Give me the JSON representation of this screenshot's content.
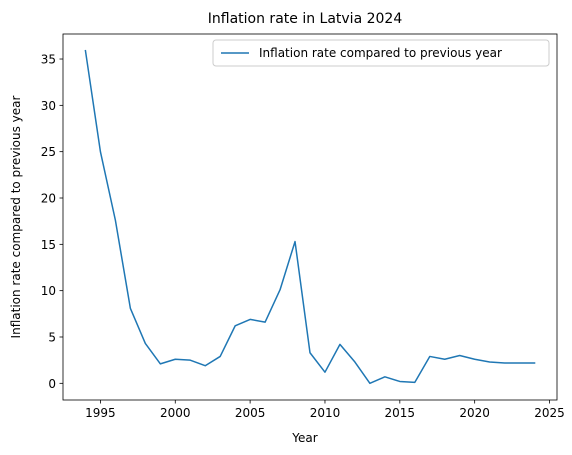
{
  "chart_data": {
    "type": "line",
    "title": "Inflation rate in Latvia 2024",
    "xlabel": "Year",
    "ylabel": "Inflation rate compared to previous year",
    "xlim": [
      1992.5,
      2025.5
    ],
    "ylim": [
      -1.8,
      37.7
    ],
    "xticks": [
      1995,
      2000,
      2005,
      2010,
      2015,
      2020,
      2025
    ],
    "yticks": [
      0,
      5,
      10,
      15,
      20,
      25,
      30,
      35
    ],
    "grid": false,
    "legend_position": "top-right",
    "series": [
      {
        "name": "Inflation rate compared to previous year",
        "color": "#1f77b4",
        "x": [
          1994,
          1995,
          1996,
          1997,
          1998,
          1999,
          2000,
          2001,
          2002,
          2003,
          2004,
          2005,
          2006,
          2007,
          2008,
          2009,
          2010,
          2011,
          2012,
          2013,
          2014,
          2015,
          2016,
          2017,
          2018,
          2019,
          2020,
          2021,
          2022,
          2023,
          2024
        ],
        "y": [
          35.9,
          25.0,
          17.6,
          8.1,
          4.3,
          2.1,
          2.6,
          2.5,
          1.9,
          2.9,
          6.2,
          6.9,
          6.6,
          10.1,
          15.3,
          3.3,
          1.2,
          4.2,
          2.3,
          0.0,
          0.7,
          0.2,
          0.1,
          2.9,
          2.6,
          3.0,
          2.6,
          2.3,
          2.2,
          2.2,
          2.2
        ]
      }
    ]
  }
}
